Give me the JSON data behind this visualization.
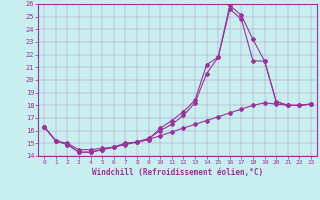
{
  "xlabel": "Windchill (Refroidissement éolien,°C)",
  "bg_color": "#c8eef0",
  "line_color": "#993399",
  "xlim": [
    -0.5,
    23.5
  ],
  "ylim": [
    14,
    26
  ],
  "xticks": [
    0,
    1,
    2,
    3,
    4,
    5,
    6,
    7,
    8,
    9,
    10,
    11,
    12,
    13,
    14,
    15,
    16,
    17,
    18,
    19,
    20,
    21,
    22,
    23
  ],
  "yticks": [
    14,
    15,
    16,
    17,
    18,
    19,
    20,
    21,
    22,
    23,
    24,
    25,
    26
  ],
  "series1_x": [
    0,
    1,
    2,
    3,
    4,
    5,
    6,
    7,
    8,
    9,
    10,
    11,
    12,
    13,
    14,
    15,
    16,
    17,
    18,
    19,
    20,
    21,
    22,
    23
  ],
  "series1_y": [
    16.3,
    15.2,
    14.9,
    14.3,
    14.3,
    14.5,
    14.7,
    15.0,
    15.1,
    15.3,
    16.2,
    16.8,
    17.5,
    18.4,
    21.2,
    21.8,
    25.9,
    25.1,
    23.2,
    21.5,
    18.3,
    18.0,
    18.0,
    18.1
  ],
  "series2_x": [
    0,
    1,
    2,
    3,
    4,
    5,
    6,
    7,
    8,
    9,
    10,
    11,
    12,
    13,
    14,
    15,
    16,
    17,
    18,
    19,
    20,
    21,
    22,
    23
  ],
  "series2_y": [
    16.3,
    15.2,
    14.9,
    14.3,
    14.3,
    14.5,
    14.7,
    15.0,
    15.1,
    15.4,
    16.0,
    16.5,
    17.2,
    18.2,
    20.5,
    21.8,
    25.6,
    24.8,
    21.5,
    21.5,
    18.3,
    18.0,
    18.0,
    18.1
  ],
  "series3_x": [
    0,
    1,
    2,
    3,
    4,
    5,
    6,
    7,
    8,
    9,
    10,
    11,
    12,
    13,
    14,
    15,
    16,
    17,
    18,
    19,
    20,
    21,
    22,
    23
  ],
  "series3_y": [
    16.3,
    15.2,
    15.0,
    14.5,
    14.5,
    14.6,
    14.7,
    14.9,
    15.1,
    15.3,
    15.6,
    15.9,
    16.2,
    16.5,
    16.8,
    17.1,
    17.4,
    17.7,
    18.0,
    18.2,
    18.1,
    18.0,
    18.0,
    18.1
  ]
}
